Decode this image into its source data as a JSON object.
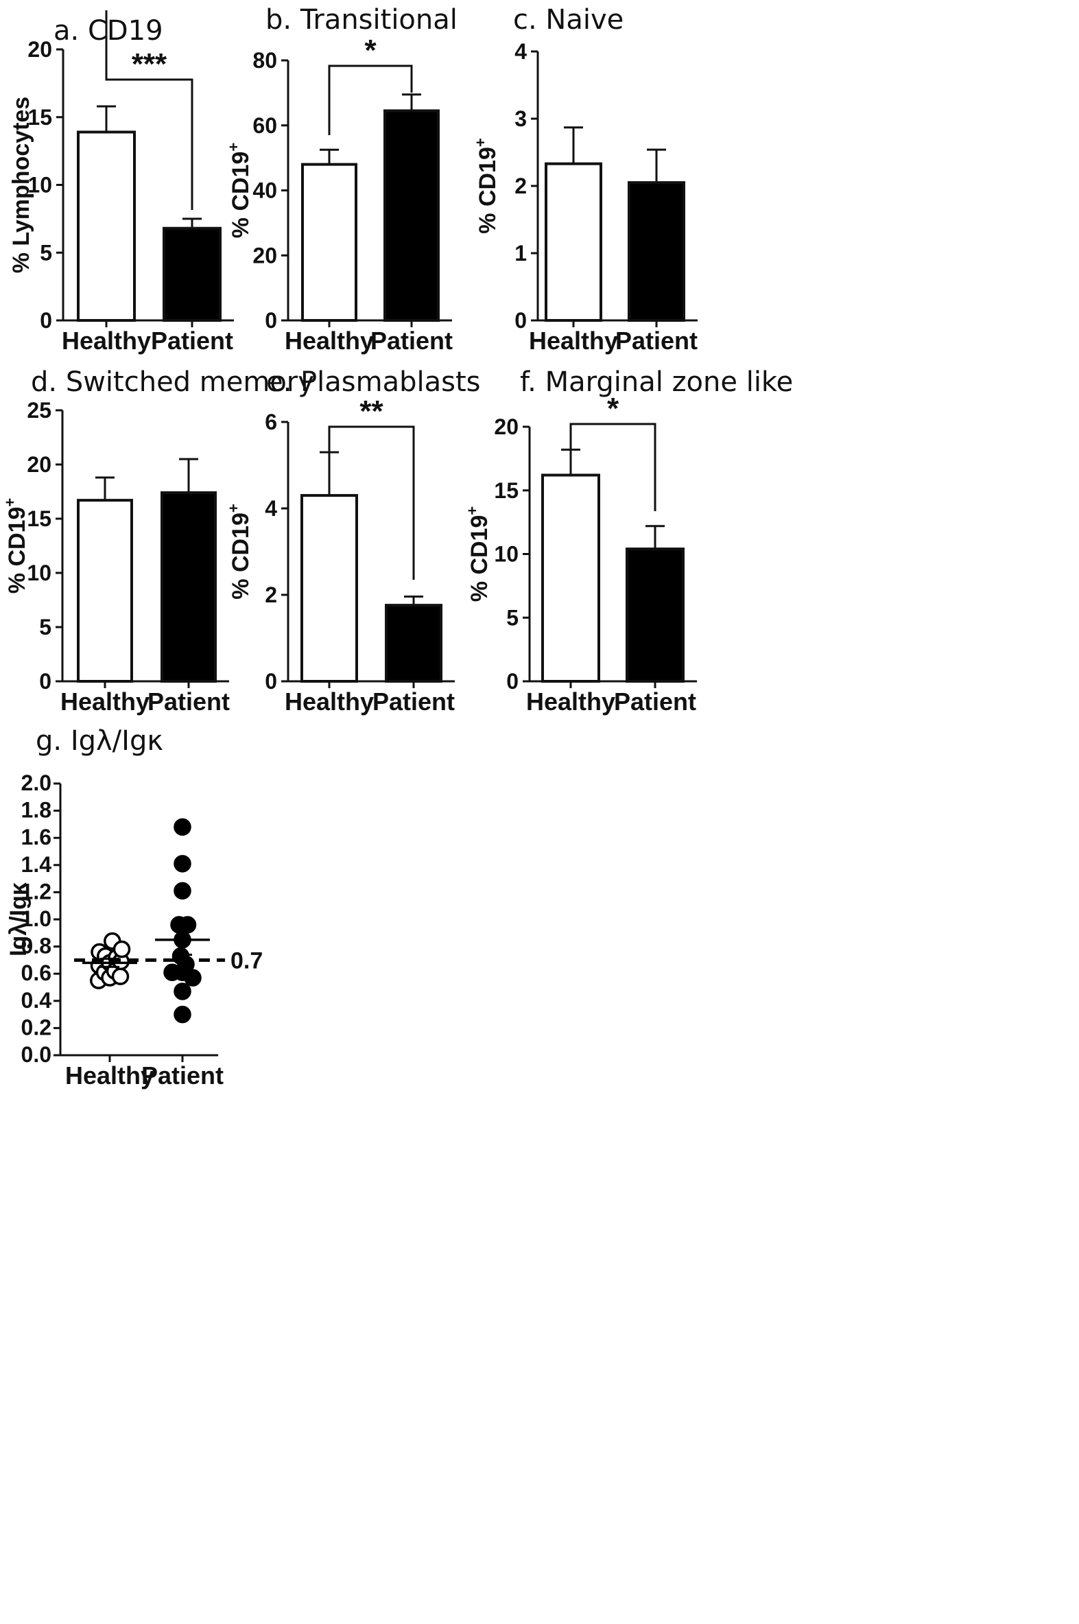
{
  "chart_data": [
    {
      "panel": "a",
      "type": "bar",
      "title": "a. CD19",
      "ylabel_main": "% Lymphocytes",
      "ylabel_sup": "",
      "categories": [
        "Healthy",
        "Patient"
      ],
      "values": [
        13.9,
        6.8
      ],
      "errors": [
        1.9,
        0.7
      ],
      "fills": [
        "#ffffff",
        "#000000"
      ],
      "ylim": [
        0,
        20
      ],
      "yticks": [
        0,
        5,
        10,
        15,
        20
      ],
      "significance": "***"
    },
    {
      "panel": "b",
      "type": "bar",
      "title": "b. Transitional",
      "ylabel_main": "% CD19",
      "ylabel_sup": "+",
      "categories": [
        "Healthy",
        "Patient"
      ],
      "values": [
        48,
        64.5
      ],
      "errors": [
        4.5,
        5
      ],
      "fills": [
        "#ffffff",
        "#000000"
      ],
      "ylim": [
        0,
        80
      ],
      "yticks": [
        0,
        20,
        40,
        60,
        80
      ],
      "significance": "*"
    },
    {
      "panel": "c",
      "type": "bar",
      "title": "c. Naive",
      "ylabel_main": "% CD19",
      "ylabel_sup": "+",
      "categories": [
        "Healthy",
        "Patient"
      ],
      "values": [
        2.33,
        2.05
      ],
      "errors": [
        0.54,
        0.49
      ],
      "fills": [
        "#ffffff",
        "#000000"
      ],
      "ylim": [
        0,
        4
      ],
      "yticks": [
        0,
        1,
        2,
        3,
        4
      ],
      "significance": ""
    },
    {
      "panel": "d",
      "type": "bar",
      "title": "d. Switched memory",
      "ylabel_main": "% CD19",
      "ylabel_sup": "+",
      "categories": [
        "Healthy",
        "Patient"
      ],
      "values": [
        16.7,
        17.4
      ],
      "errors": [
        2.1,
        3.1
      ],
      "fills": [
        "#ffffff",
        "#000000"
      ],
      "ylim": [
        0,
        25
      ],
      "yticks": [
        0,
        5,
        10,
        15,
        20,
        25
      ],
      "significance": ""
    },
    {
      "panel": "e",
      "type": "bar",
      "title": "e. Plasmablasts",
      "ylabel_main": "% CD19",
      "ylabel_sup": "+",
      "categories": [
        "Healthy",
        "Patient"
      ],
      "values": [
        4.3,
        1.76
      ],
      "errors": [
        1.0,
        0.2
      ],
      "fills": [
        "#ffffff",
        "#000000"
      ],
      "ylim": [
        0,
        6
      ],
      "yticks": [
        0,
        2,
        4,
        6
      ],
      "significance": "**"
    },
    {
      "panel": "f",
      "type": "bar",
      "title": "f. Marginal zone like",
      "ylabel_main": "% CD19",
      "ylabel_sup": "+",
      "categories": [
        "Healthy",
        "Patient"
      ],
      "values": [
        16.2,
        10.4
      ],
      "errors": [
        2.0,
        1.8
      ],
      "fills": [
        "#ffffff",
        "#000000"
      ],
      "ylim": [
        0,
        20
      ],
      "yticks": [
        0,
        5,
        10,
        15,
        20
      ],
      "significance": "*"
    },
    {
      "panel": "g",
      "type": "scatter",
      "title": "g. Igλ/Igκ",
      "ylabel_main": "Igλ/Igκ",
      "categories": [
        "Healthy",
        "Patient"
      ],
      "ylim": [
        0,
        2
      ],
      "yticks": [
        "0.0",
        "0.2",
        "0.4",
        "0.6",
        "0.8",
        "1.0",
        "1.2",
        "1.4",
        "1.6",
        "1.8",
        "2.0"
      ],
      "series": [
        {
          "name": "Healthy",
          "marker": "open-circle",
          "mean": 0.68,
          "sem": 0.03,
          "points": [
            {
              "offset": -0.65,
              "y": 0.55
            },
            {
              "offset": -0.62,
              "y": 0.66
            },
            {
              "offset": -0.6,
              "y": 0.76
            },
            {
              "offset": -0.3,
              "y": 0.61
            },
            {
              "offset": -0.25,
              "y": 0.73
            },
            {
              "offset": 0.0,
              "y": 0.57
            },
            {
              "offset": 0.0,
              "y": 0.68
            },
            {
              "offset": 0.15,
              "y": 0.84
            },
            {
              "offset": 0.3,
              "y": 0.62
            },
            {
              "offset": 0.4,
              "y": 0.72
            },
            {
              "offset": 0.62,
              "y": 0.58
            },
            {
              "offset": 0.65,
              "y": 0.69
            },
            {
              "offset": 0.7,
              "y": 0.78
            }
          ]
        },
        {
          "name": "Patient",
          "marker": "filled-circle",
          "mean": 0.85,
          "sem": 0.11,
          "points": [
            {
              "offset": 0.0,
              "y": 1.68
            },
            {
              "offset": 0.0,
              "y": 1.41
            },
            {
              "offset": 0.0,
              "y": 1.21
            },
            {
              "offset": -0.2,
              "y": 0.96
            },
            {
              "offset": 0.3,
              "y": 0.96
            },
            {
              "offset": 0.0,
              "y": 0.85
            },
            {
              "offset": -0.1,
              "y": 0.73
            },
            {
              "offset": -0.6,
              "y": 0.61
            },
            {
              "offset": 0.6,
              "y": 0.57
            },
            {
              "offset": 0.0,
              "y": 0.61
            },
            {
              "offset": 0.2,
              "y": 0.67
            },
            {
              "offset": 0.0,
              "y": 0.47
            },
            {
              "offset": 0.0,
              "y": 0.3
            }
          ]
        }
      ],
      "reference_line": {
        "y": 0.7,
        "label": "0.7",
        "style": "dashed"
      }
    }
  ]
}
